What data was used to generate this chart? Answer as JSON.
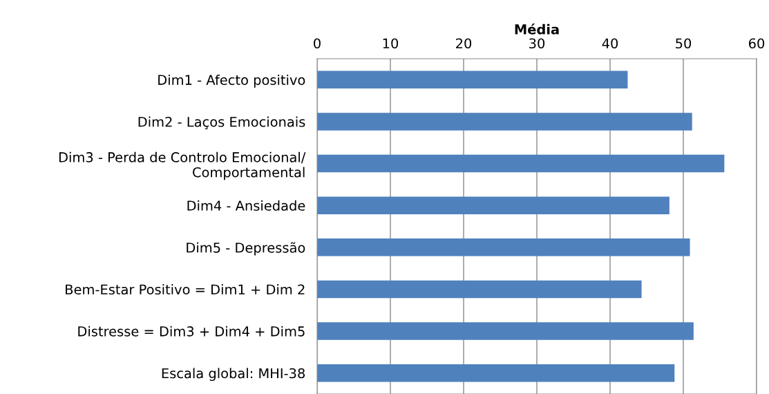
{
  "chart_data": {
    "type": "bar",
    "orientation": "horizontal",
    "xlabel": "Média",
    "categories": [
      "Dim1 - Afecto positivo",
      "Dim2 - Laços Emocionais",
      "Dim3 - Perda de Controlo Emocional/\nComportamental",
      "Dim4 - Ansiedade",
      "Dim5 - Depressão",
      "Bem-Estar Positivo = Dim1 + Dim 2",
      "Distresse = Dim3 + Dim4 + Dim5",
      "Escala global: MHI-38"
    ],
    "values": [
      42.4,
      51.2,
      55.6,
      48.1,
      50.9,
      44.3,
      51.4,
      48.8
    ],
    "color": "#4f81bd",
    "xlim": [
      0,
      60
    ],
    "xticks": [
      0,
      10,
      20,
      30,
      40,
      50,
      60
    ],
    "grid": "x",
    "legend": false
  }
}
